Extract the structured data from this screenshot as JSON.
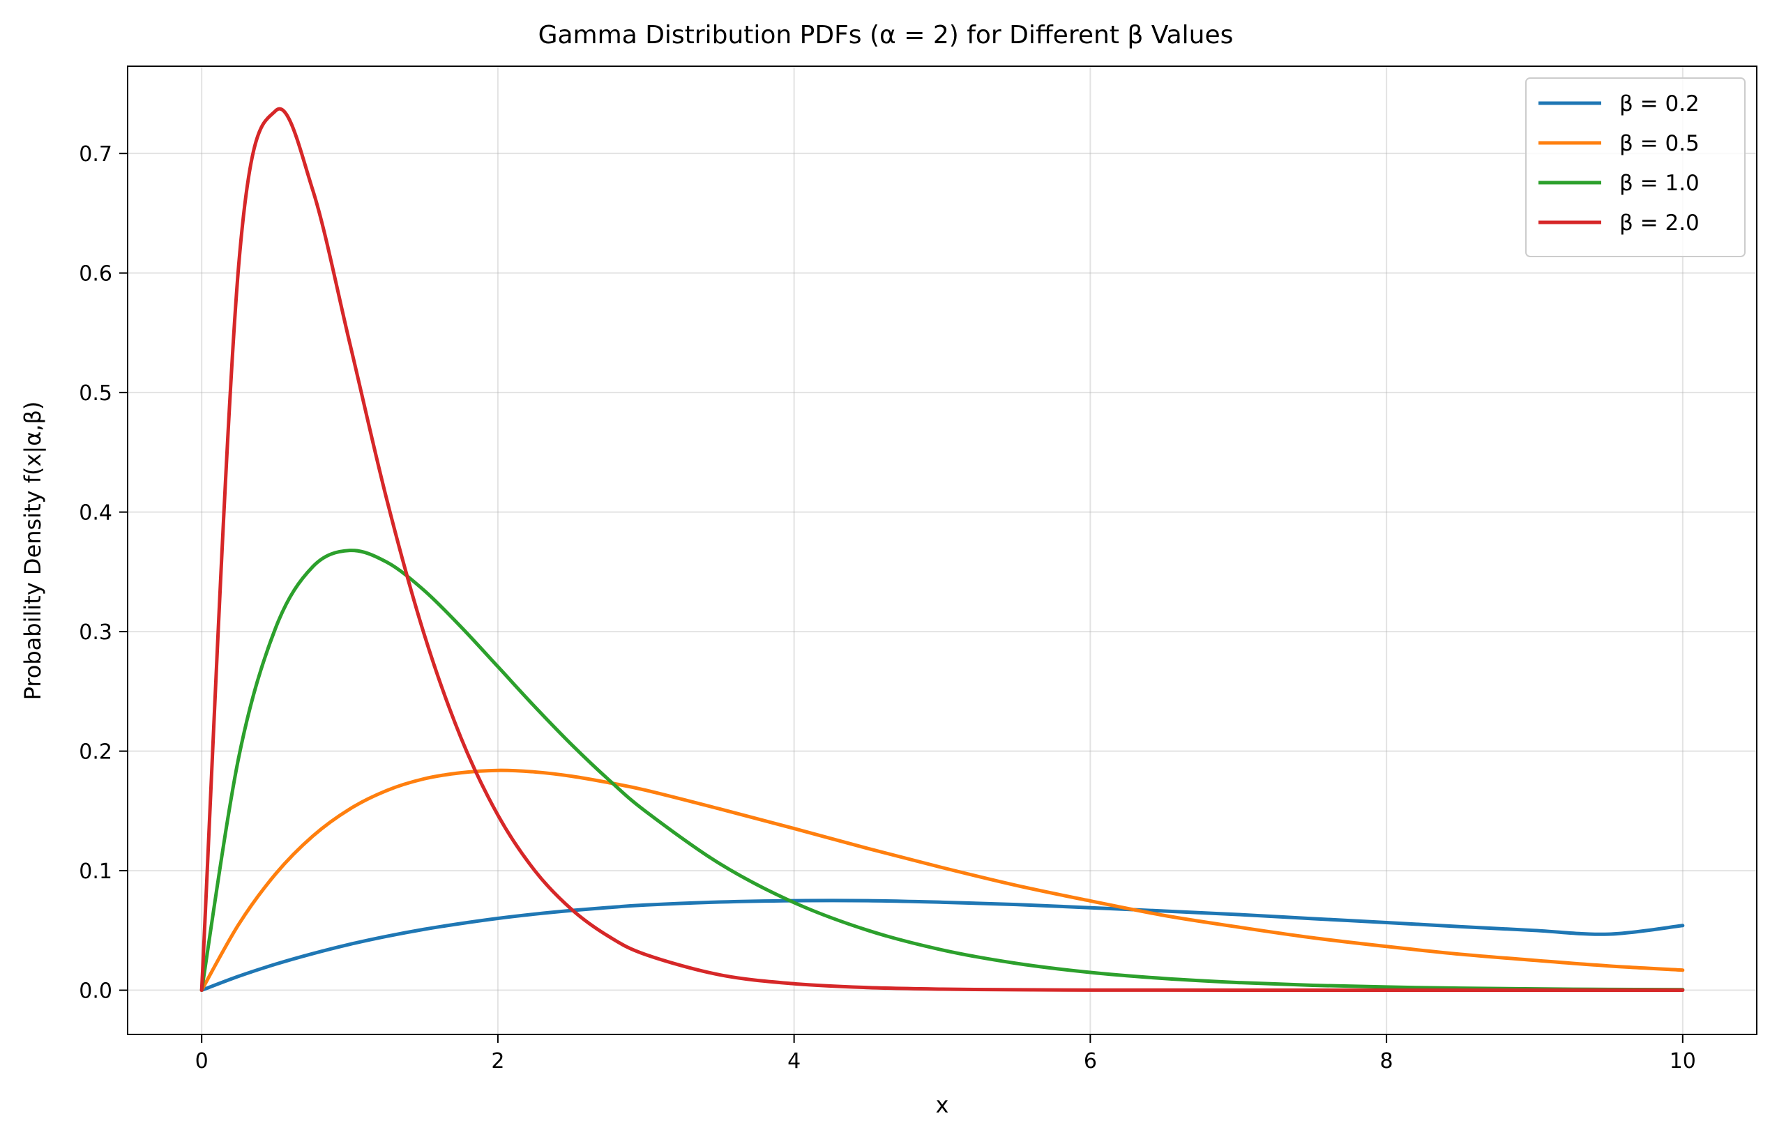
{
  "chart_data": {
    "type": "line",
    "title": "Gamma Distribution PDFs (α = 2) for Different β Values",
    "xlabel": "x",
    "ylabel": "Probability Density f(x|α,β)",
    "xlim": [
      -0.5,
      10.5
    ],
    "ylim": [
      -0.037,
      0.773
    ],
    "x_ticks": [
      0,
      2,
      4,
      6,
      8,
      10
    ],
    "x_tick_labels": [
      "0",
      "2",
      "4",
      "6",
      "8",
      "10"
    ],
    "y_ticks": [
      0.0,
      0.1,
      0.2,
      0.3,
      0.4,
      0.5,
      0.6,
      0.7
    ],
    "y_tick_labels": [
      "0.0",
      "0.1",
      "0.2",
      "0.3",
      "0.4",
      "0.5",
      "0.6",
      "0.7"
    ],
    "grid": true,
    "legend_position": "top-right",
    "x": [
      0,
      0.25,
      0.5,
      0.75,
      1,
      1.25,
      1.5,
      1.75,
      2,
      2.25,
      2.5,
      2.75,
      3,
      3.5,
      4,
      4.5,
      5,
      5.5,
      6,
      6.5,
      7,
      7.5,
      8,
      8.5,
      9,
      9.5,
      10
    ],
    "series": [
      {
        "name": "β = 0.2",
        "color": "#1f77b4",
        "values": [
          0,
          0.0117,
          0.0218,
          0.0306,
          0.0384,
          0.0451,
          0.0509,
          0.0558,
          0.0601,
          0.0637,
          0.0667,
          0.0692,
          0.0713,
          0.0738,
          0.0749,
          0.0749,
          0.0736,
          0.0717,
          0.069,
          0.0662,
          0.0633,
          0.0599,
          0.0566,
          0.0532,
          0.05,
          0.0469,
          0.0541
        ]
      },
      {
        "name": "β = 0.5",
        "color": "#ff7f0e",
        "values": [
          0,
          0.0551,
          0.0974,
          0.1289,
          0.1516,
          0.1671,
          0.1768,
          0.1819,
          0.1839,
          0.1826,
          0.179,
          0.1736,
          0.1673,
          0.1516,
          0.1353,
          0.1185,
          0.1026,
          0.0877,
          0.0747,
          0.0625,
          0.0528,
          0.0439,
          0.0366,
          0.0301,
          0.025,
          0.0203,
          0.0168
        ]
      },
      {
        "name": "β = 1.0",
        "color": "#2ca02c",
        "values": [
          0,
          0.1947,
          0.3033,
          0.3543,
          0.3679,
          0.3581,
          0.3347,
          0.3041,
          0.2707,
          0.2371,
          0.2052,
          0.1759,
          0.1494,
          0.1057,
          0.0733,
          0.05,
          0.0337,
          0.0225,
          0.0149,
          0.0098,
          0.0064,
          0.0041,
          0.0027,
          0.0017,
          0.0011,
          0.0007,
          0.0005
        ]
      },
      {
        "name": "β = 2.0",
        "color": "#d62728",
        "values": [
          0,
          0.6065,
          0.7358,
          0.6694,
          0.5413,
          0.4104,
          0.2987,
          0.2114,
          0.1465,
          0.0999,
          0.0674,
          0.0449,
          0.0297,
          0.0128,
          0.0054,
          0.0022,
          0.0009,
          0.0004,
          0.0001,
          0.0001,
          0,
          0,
          0,
          0,
          0,
          0,
          0
        ]
      }
    ]
  }
}
